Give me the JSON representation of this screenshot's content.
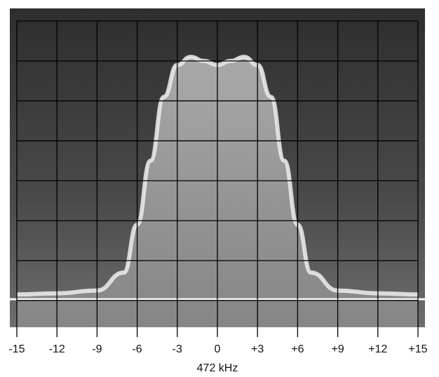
{
  "chart_data": {
    "type": "area",
    "x_label": "472 kHz",
    "series": [
      {
        "color": "#e8e8e8",
        "x": [
          -15,
          -12,
          -9,
          -7,
          -6,
          -5,
          -4,
          -3,
          -2,
          -1,
          0,
          1,
          2,
          3,
          4,
          5,
          6,
          7,
          9,
          12,
          15
        ],
        "values": [
          0.15,
          0.18,
          0.25,
          0.7,
          1.9,
          3.5,
          5.1,
          5.9,
          6.1,
          6.0,
          5.9,
          6.0,
          6.1,
          5.9,
          5.1,
          3.5,
          1.9,
          0.7,
          0.25,
          0.18,
          0.15
        ]
      }
    ],
    "xlim": [
      -15,
      15
    ],
    "xticks": [
      -15,
      -12,
      -9,
      -6,
      -3,
      0,
      {
        "value": 3,
        "label": "+3"
      },
      {
        "value": 6,
        "label": "+6"
      },
      {
        "value": 9,
        "label": "+9"
      },
      {
        "value": 12,
        "label": "+12"
      },
      {
        "value": 15,
        "label": "+15"
      }
    ],
    "ylim": [
      -0.67,
      7
    ],
    "yticks": [
      0,
      1,
      2,
      3,
      4,
      5,
      6,
      7
    ],
    "grid": true
  }
}
